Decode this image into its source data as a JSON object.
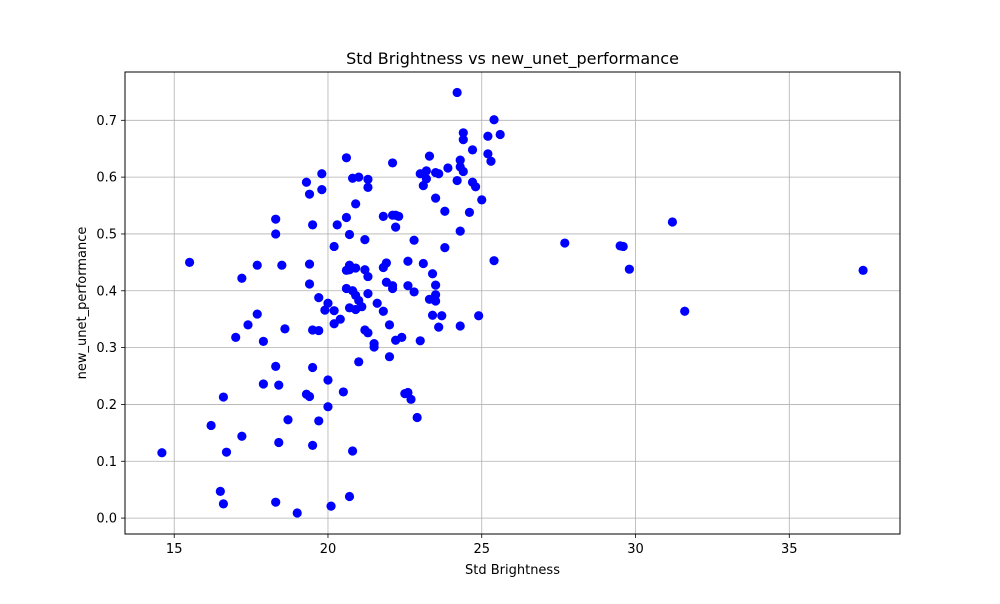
{
  "chart_data": {
    "type": "scatter",
    "title": "Std Brightness vs new_unet_performance",
    "xlabel": "Std Brightness",
    "ylabel": "new_unet_performance",
    "xlim": [
      13.4,
      38.6
    ],
    "ylim": [
      -0.028,
      0.785
    ],
    "xticks": [
      15,
      20,
      25,
      30,
      35
    ],
    "yticks": [
      0.0,
      0.1,
      0.2,
      0.3,
      0.4,
      0.5,
      0.6,
      0.7
    ],
    "xtick_labels": [
      "15",
      "20",
      "25",
      "30",
      "35"
    ],
    "ytick_labels": [
      "0.0",
      "0.1",
      "0.2",
      "0.3",
      "0.4",
      "0.5",
      "0.6",
      "0.7"
    ],
    "grid": true,
    "marker_color": "#0000ff",
    "points": [
      [
        14.6,
        0.115
      ],
      [
        15.5,
        0.45
      ],
      [
        16.2,
        0.163
      ],
      [
        16.5,
        0.047
      ],
      [
        16.6,
        0.213
      ],
      [
        16.6,
        0.025
      ],
      [
        16.7,
        0.116
      ],
      [
        17.0,
        0.318
      ],
      [
        17.2,
        0.422
      ],
      [
        17.2,
        0.144
      ],
      [
        17.4,
        0.34
      ],
      [
        17.7,
        0.445
      ],
      [
        17.7,
        0.359
      ],
      [
        17.9,
        0.311
      ],
      [
        17.9,
        0.236
      ],
      [
        18.3,
        0.526
      ],
      [
        18.3,
        0.5
      ],
      [
        18.3,
        0.267
      ],
      [
        18.3,
        0.028
      ],
      [
        18.4,
        0.234
      ],
      [
        18.4,
        0.133
      ],
      [
        18.5,
        0.445
      ],
      [
        18.6,
        0.333
      ],
      [
        18.7,
        0.173
      ],
      [
        19.0,
        0.009
      ],
      [
        19.3,
        0.591
      ],
      [
        19.3,
        0.218
      ],
      [
        19.4,
        0.214
      ],
      [
        19.4,
        0.57
      ],
      [
        19.4,
        0.447
      ],
      [
        19.4,
        0.412
      ],
      [
        19.5,
        0.516
      ],
      [
        19.5,
        0.331
      ],
      [
        19.5,
        0.265
      ],
      [
        19.5,
        0.128
      ],
      [
        19.7,
        0.388
      ],
      [
        19.7,
        0.33
      ],
      [
        19.7,
        0.171
      ],
      [
        19.8,
        0.606
      ],
      [
        19.8,
        0.578
      ],
      [
        19.9,
        0.366
      ],
      [
        20.0,
        0.378
      ],
      [
        20.0,
        0.243
      ],
      [
        20.0,
        0.196
      ],
      [
        20.1,
        0.021
      ],
      [
        20.2,
        0.478
      ],
      [
        20.2,
        0.342
      ],
      [
        20.2,
        0.365
      ],
      [
        20.3,
        0.516
      ],
      [
        20.4,
        0.35
      ],
      [
        20.5,
        0.222
      ],
      [
        20.6,
        0.634
      ],
      [
        20.6,
        0.529
      ],
      [
        20.6,
        0.436
      ],
      [
        20.6,
        0.404
      ],
      [
        20.7,
        0.499
      ],
      [
        20.7,
        0.445
      ],
      [
        20.7,
        0.437
      ],
      [
        20.7,
        0.37
      ],
      [
        20.7,
        0.038
      ],
      [
        20.8,
        0.598
      ],
      [
        20.8,
        0.4
      ],
      [
        20.8,
        0.118
      ],
      [
        20.9,
        0.553
      ],
      [
        20.9,
        0.44
      ],
      [
        20.9,
        0.392
      ],
      [
        20.9,
        0.367
      ],
      [
        21.0,
        0.6
      ],
      [
        21.0,
        0.383
      ],
      [
        21.0,
        0.275
      ],
      [
        21.1,
        0.372
      ],
      [
        21.2,
        0.49
      ],
      [
        21.2,
        0.437
      ],
      [
        21.2,
        0.331
      ],
      [
        21.3,
        0.596
      ],
      [
        21.3,
        0.582
      ],
      [
        21.3,
        0.425
      ],
      [
        21.3,
        0.395
      ],
      [
        21.3,
        0.326
      ],
      [
        21.5,
        0.307
      ],
      [
        21.5,
        0.301
      ],
      [
        21.6,
        0.378
      ],
      [
        21.8,
        0.531
      ],
      [
        21.8,
        0.441
      ],
      [
        21.8,
        0.364
      ],
      [
        21.9,
        0.449
      ],
      [
        21.9,
        0.415
      ],
      [
        22.0,
        0.34
      ],
      [
        22.0,
        0.284
      ],
      [
        22.1,
        0.625
      ],
      [
        22.1,
        0.533
      ],
      [
        22.1,
        0.409
      ],
      [
        22.1,
        0.404
      ],
      [
        22.2,
        0.533
      ],
      [
        22.2,
        0.512
      ],
      [
        22.2,
        0.313
      ],
      [
        22.3,
        0.531
      ],
      [
        22.4,
        0.318
      ],
      [
        22.5,
        0.219
      ],
      [
        22.6,
        0.221
      ],
      [
        22.6,
        0.452
      ],
      [
        22.6,
        0.409
      ],
      [
        22.7,
        0.209
      ],
      [
        22.8,
        0.398
      ],
      [
        22.8,
        0.489
      ],
      [
        22.9,
        0.177
      ],
      [
        23.0,
        0.606
      ],
      [
        23.0,
        0.312
      ],
      [
        23.1,
        0.585
      ],
      [
        23.1,
        0.448
      ],
      [
        23.2,
        0.611
      ],
      [
        23.2,
        0.597
      ],
      [
        23.3,
        0.637
      ],
      [
        23.3,
        0.385
      ],
      [
        23.4,
        0.43
      ],
      [
        23.4,
        0.357
      ],
      [
        23.5,
        0.608
      ],
      [
        23.5,
        0.563
      ],
      [
        23.5,
        0.41
      ],
      [
        23.5,
        0.393
      ],
      [
        23.5,
        0.382
      ],
      [
        23.6,
        0.606
      ],
      [
        23.6,
        0.336
      ],
      [
        23.7,
        0.356
      ],
      [
        23.8,
        0.476
      ],
      [
        23.8,
        0.54
      ],
      [
        23.9,
        0.616
      ],
      [
        24.2,
        0.749
      ],
      [
        24.2,
        0.594
      ],
      [
        24.3,
        0.63
      ],
      [
        24.3,
        0.618
      ],
      [
        24.3,
        0.505
      ],
      [
        24.3,
        0.338
      ],
      [
        24.4,
        0.666
      ],
      [
        24.4,
        0.678
      ],
      [
        24.4,
        0.61
      ],
      [
        24.6,
        0.538
      ],
      [
        24.7,
        0.648
      ],
      [
        24.7,
        0.591
      ],
      [
        24.8,
        0.583
      ],
      [
        24.9,
        0.356
      ],
      [
        25.0,
        0.56
      ],
      [
        25.2,
        0.672
      ],
      [
        25.2,
        0.641
      ],
      [
        25.3,
        0.628
      ],
      [
        25.4,
        0.701
      ],
      [
        25.4,
        0.453
      ],
      [
        25.6,
        0.675
      ],
      [
        27.7,
        0.484
      ],
      [
        29.5,
        0.479
      ],
      [
        29.6,
        0.478
      ],
      [
        29.8,
        0.438
      ],
      [
        31.2,
        0.521
      ],
      [
        31.6,
        0.364
      ],
      [
        37.4,
        0.436
      ]
    ]
  }
}
